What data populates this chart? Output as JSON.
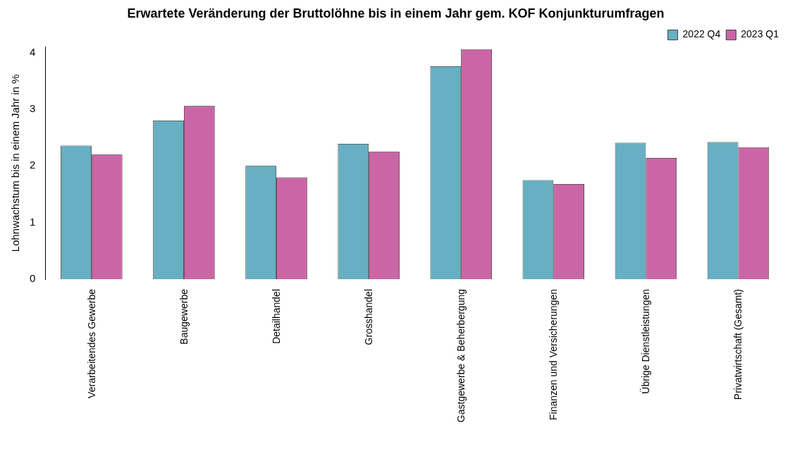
{
  "chart_data": {
    "type": "bar",
    "title": "Erwartete Veränderung der Bruttolöhne bis in einem Jahr gem. KOF Konjunkturumfragen",
    "ylabel": "Lohnwachstum bis in einem Jahr in %",
    "categories": [
      "Verarbeitendes Gewerbe",
      "Baugewerbe",
      "Detailhandel",
      "Grosshandel",
      "Gastgewerbe & Beherbergung",
      "Finanzen und Versicherungen",
      "Übrige Dienstleistungen",
      "Privatwirtschaft (Gesamt)"
    ],
    "series": [
      {
        "name": "2022 Q4",
        "color": "#67afc2",
        "values": [
          2.36,
          2.8,
          2.0,
          2.39,
          3.76,
          1.75,
          2.41,
          2.42
        ]
      },
      {
        "name": "2023 Q1",
        "color": "#cb66a6",
        "values": [
          2.2,
          3.06,
          1.8,
          2.25,
          4.06,
          1.68,
          2.14,
          2.33
        ]
      }
    ],
    "ylim": [
      0,
      4.1
    ],
    "yticks": [
      0,
      1,
      2,
      3,
      4
    ],
    "grid": false,
    "legend": "top right"
  }
}
